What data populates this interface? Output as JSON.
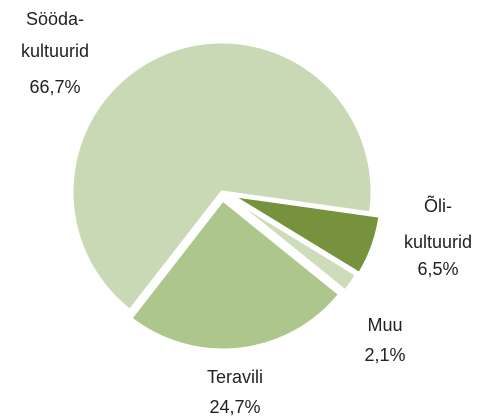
{
  "chart_data": {
    "type": "pie",
    "categories": [
      [
        "Sööda-",
        "kultuurid"
      ],
      [
        "Õli-",
        "kultuurid"
      ],
      [
        "Muu"
      ],
      [
        "Teravili"
      ]
    ],
    "values": [
      66.7,
      6.5,
      2.1,
      24.7
    ],
    "value_labels": [
      "66,7%",
      "6,5%",
      "2,1%",
      "24,7%"
    ],
    "colors": [
      "#cad9b5",
      "#77923c",
      "#cddcb9",
      "#adc68b"
    ]
  }
}
